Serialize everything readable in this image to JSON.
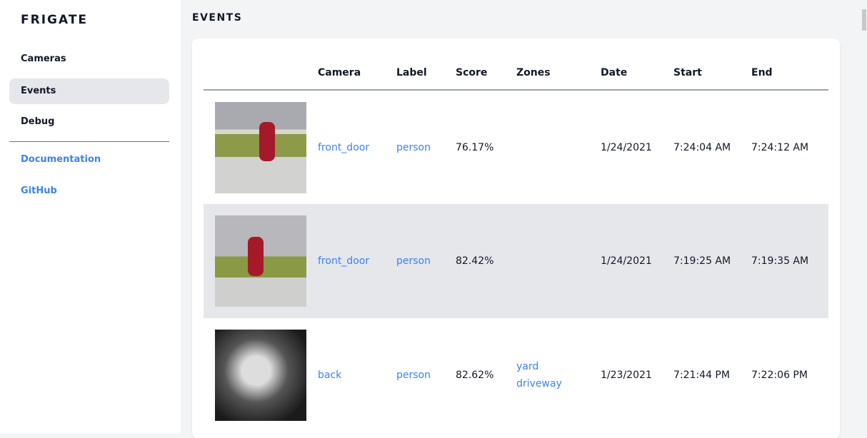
{
  "sidebar": {
    "brand": "FRIGATE",
    "items": [
      {
        "label": "Cameras"
      },
      {
        "label": "Events"
      },
      {
        "label": "Debug"
      }
    ],
    "links": [
      {
        "label": "Documentation"
      },
      {
        "label": "GitHub"
      }
    ]
  },
  "main": {
    "title": "EVENTS",
    "columns": [
      "",
      "Camera",
      "Label",
      "Score",
      "Zones",
      "Date",
      "Start",
      "End"
    ],
    "rows": [
      {
        "camera": "front_door",
        "label": "person",
        "score": "76.17%",
        "zones": [
          "",
          ""
        ],
        "date": "1/24/2021",
        "start": "7:24:04 AM",
        "end": "7:24:12 AM"
      },
      {
        "camera": "front_door",
        "label": "person",
        "score": "82.42%",
        "zones": [
          "",
          ""
        ],
        "date": "1/24/2021",
        "start": "7:19:25 AM",
        "end": "7:19:35 AM"
      },
      {
        "camera": "back",
        "label": "person",
        "score": "82.62%",
        "zones": [
          "yard",
          "driveway"
        ],
        "date": "1/23/2021",
        "start": "7:21:44 PM",
        "end": "7:22:06 PM"
      }
    ]
  },
  "colors": {
    "accent": "#3b82f6",
    "active_bg": "#e5e7eb"
  }
}
